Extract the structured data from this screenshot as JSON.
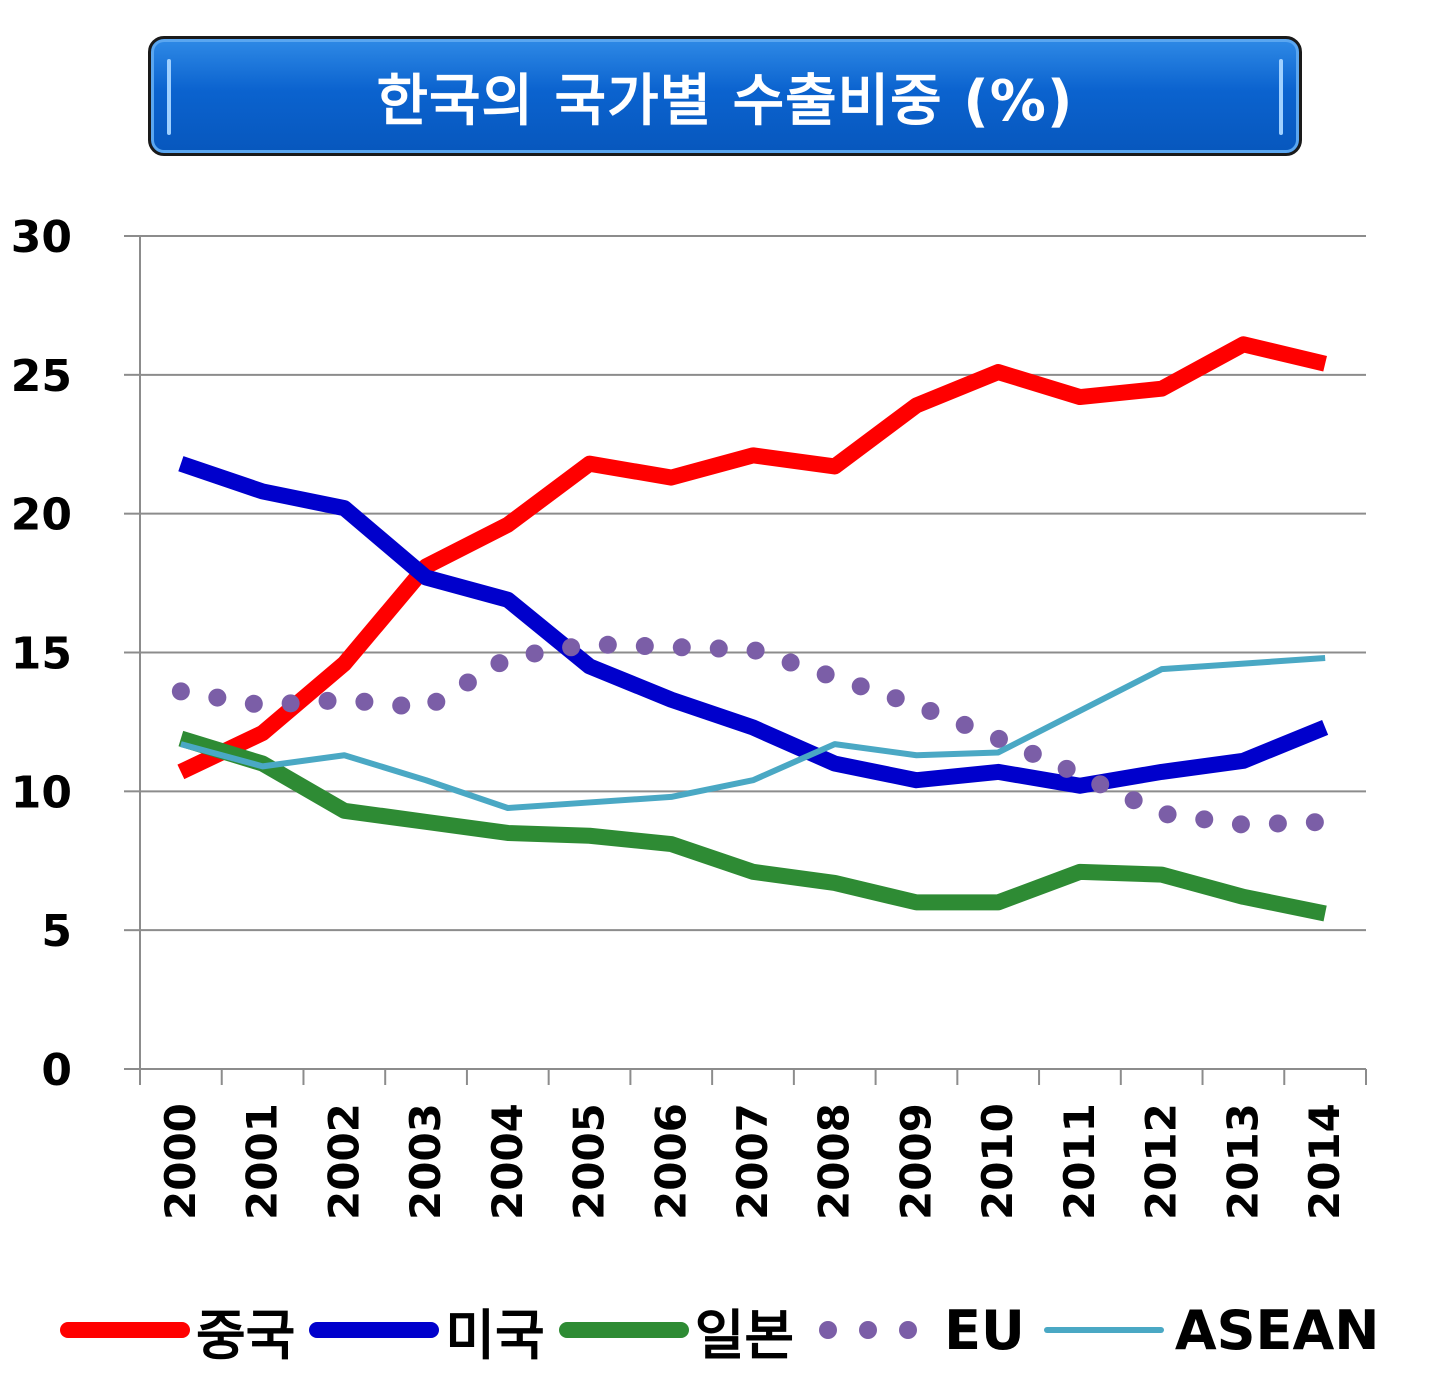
{
  "chart_data": {
    "type": "line",
    "title": "한국의 국가별 수출비중 (%)",
    "xlabel": "",
    "ylabel": "",
    "x": [
      "2000",
      "2001",
      "2002",
      "2003",
      "2004",
      "2005",
      "2006",
      "2007",
      "2008",
      "2009",
      "2010",
      "2011",
      "2012",
      "2013",
      "2014"
    ],
    "ylim": [
      0,
      30
    ],
    "yticks": [
      "0",
      "5",
      "10",
      "15",
      "20",
      "25",
      "30"
    ],
    "grid": true,
    "legend_position": "bottom",
    "series": [
      {
        "name": "중국",
        "color": "#ff0000",
        "style": "solid-thick",
        "values": [
          10.7,
          12.1,
          14.6,
          18.1,
          19.6,
          21.8,
          21.3,
          22.1,
          21.7,
          23.9,
          25.1,
          24.2,
          24.5,
          26.1,
          25.4
        ]
      },
      {
        "name": "미국",
        "color": "#0000cc",
        "style": "solid-thick",
        "values": [
          21.8,
          20.8,
          20.2,
          17.7,
          16.9,
          14.5,
          13.3,
          12.3,
          11.0,
          10.4,
          10.7,
          10.2,
          10.7,
          11.1,
          12.3
        ]
      },
      {
        "name": "일본",
        "color": "#2e8b34",
        "style": "solid-thick",
        "values": [
          11.9,
          11.0,
          9.3,
          8.9,
          8.5,
          8.4,
          8.1,
          7.1,
          6.7,
          6.0,
          6.0,
          7.1,
          7.0,
          6.2,
          5.6
        ]
      },
      {
        "name": "EU",
        "color": "#7b5ea7",
        "style": "dotted",
        "values": [
          13.6,
          13.1,
          13.3,
          13.0,
          14.8,
          15.3,
          15.2,
          15.1,
          14.1,
          13.1,
          11.9,
          10.6,
          9.2,
          8.8,
          8.9
        ]
      },
      {
        "name": "ASEAN",
        "color": "#4aa8c4",
        "style": "solid-thin",
        "values": [
          11.7,
          10.9,
          11.3,
          10.4,
          9.4,
          9.6,
          9.8,
          10.4,
          11.7,
          11.3,
          11.4,
          12.9,
          14.4,
          14.6,
          14.8
        ]
      }
    ]
  }
}
